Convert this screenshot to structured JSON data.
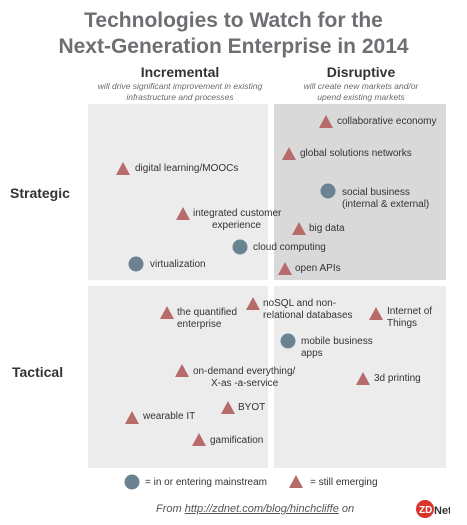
{
  "title": {
    "line1": "Technologies to Watch for the",
    "line2": "Next-Generation Enterprise in 2014"
  },
  "columns": {
    "incremental": {
      "label": "Incremental",
      "subtitle_line1": "will drive significant improvement in existing",
      "subtitle_line2": "infrastructure and processes"
    },
    "disruptive": {
      "label": "Disruptive",
      "subtitle_line1": "will create new markets and/or",
      "subtitle_line2": "upend existing markets"
    }
  },
  "rows": {
    "strategic": "Strategic",
    "tactical": "Tactical"
  },
  "colors": {
    "triangle": "#b76b6b",
    "circle": "#6a8292",
    "quadrant_light": "#ececec",
    "quadrant_dark": "#d9d9d9"
  },
  "items": [
    {
      "label1": "collaborative economy",
      "label2": "",
      "status": "still emerging",
      "marker": "triangle"
    },
    {
      "label1": "global solutions networks",
      "label2": "",
      "status": "still emerging",
      "marker": "triangle"
    },
    {
      "label1": "digital learning/MOOCs",
      "label2": "",
      "status": "still emerging",
      "marker": "triangle"
    },
    {
      "label1": "social business",
      "label2": "(internal & external)",
      "status": "in or entering mainstream",
      "marker": "circle"
    },
    {
      "label1": "integrated customer",
      "label2": "experience",
      "status": "still emerging",
      "marker": "triangle"
    },
    {
      "label1": "big data",
      "label2": "",
      "status": "still emerging",
      "marker": "triangle"
    },
    {
      "label1": "cloud computing",
      "label2": "",
      "status": "in or entering mainstream",
      "marker": "circle"
    },
    {
      "label1": "virtualization",
      "label2": "",
      "status": "in or entering mainstream",
      "marker": "circle"
    },
    {
      "label1": "open APIs",
      "label2": "",
      "status": "still emerging",
      "marker": "triangle"
    },
    {
      "label1": "the quantified",
      "label2": "enterprise",
      "status": "still emerging",
      "marker": "triangle"
    },
    {
      "label1": "noSQL and non-",
      "label2": "relational databases",
      "status": "still emerging",
      "marker": "triangle"
    },
    {
      "label1": "Internet of",
      "label2": "Things",
      "status": "still emerging",
      "marker": "triangle"
    },
    {
      "label1": "mobile business",
      "label2": "apps",
      "status": "in or entering mainstream",
      "marker": "circle"
    },
    {
      "label1": "on-demand everything/",
      "label2": "X-as -a-service",
      "status": "still emerging",
      "marker": "triangle"
    },
    {
      "label1": "3d printing",
      "label2": "",
      "status": "still emerging",
      "marker": "triangle"
    },
    {
      "label1": "BYOT",
      "label2": "",
      "status": "still emerging",
      "marker": "triangle"
    },
    {
      "label1": "wearable IT",
      "label2": "",
      "status": "still emerging",
      "marker": "triangle"
    },
    {
      "label1": "gamification",
      "label2": "",
      "status": "still emerging",
      "marker": "triangle"
    }
  ],
  "legend": {
    "circle_label": "= in or entering mainstream",
    "triangle_label": "= still emerging"
  },
  "footer": {
    "prefix": "From",
    "link": "http://zdnet.com/blog/hinchcliffe",
    "suffix": "on",
    "logo_text": "ZDNet."
  }
}
